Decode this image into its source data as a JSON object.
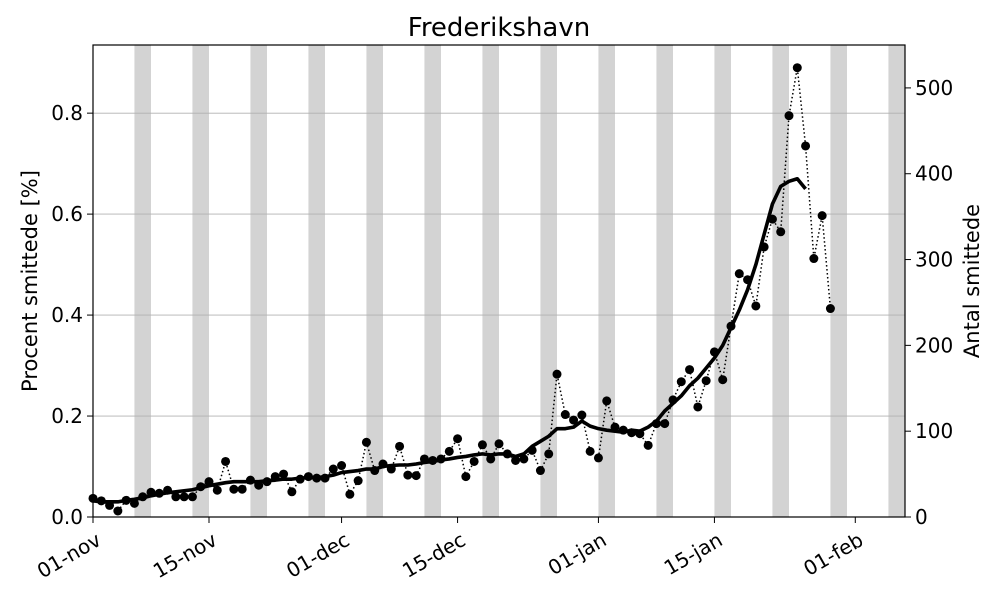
{
  "chart_data": {
    "type": "line",
    "title": "Frederikshavn",
    "ylabel_left": "Procent smittede [%]",
    "ylabel_right": "Antal smittede",
    "x_ticks": [
      "01-nov",
      "15-nov",
      "01-dec",
      "15-dec",
      "01-jan",
      "15-jan",
      "01-feb"
    ],
    "x_range": [
      "2021-11-01",
      "2022-02-07"
    ],
    "y_left_range": [
      0,
      0.935
    ],
    "y_right_range": [
      0,
      550
    ],
    "y_left_ticks": [
      "0.0",
      "0.2",
      "0.4",
      "0.6",
      "0.8"
    ],
    "y_right_ticks": [
      "0",
      "100",
      "200",
      "300",
      "400",
      "500"
    ],
    "grid": "horizontal",
    "weekend_shading": true,
    "series": [
      {
        "style": "dotted-markers",
        "axis": "left",
        "color": "#000000",
        "values": [
          0.037,
          0.032,
          0.023,
          0.012,
          0.033,
          0.027,
          0.04,
          0.049,
          0.047,
          0.053,
          0.04,
          0.04,
          0.04,
          0.06,
          0.07,
          0.053,
          0.11,
          0.055,
          0.055,
          0.073,
          0.063,
          0.07,
          0.08,
          0.085,
          0.05,
          0.075,
          0.08,
          0.077,
          0.077,
          0.095,
          0.102,
          0.045,
          0.072,
          0.148,
          0.092,
          0.105,
          0.095,
          0.14,
          0.083,
          0.082,
          0.115,
          0.112,
          0.115,
          0.13,
          0.155,
          0.08,
          0.11,
          0.143,
          0.115,
          0.145,
          0.125,
          0.112,
          0.115,
          0.132,
          0.092,
          0.125,
          0.283,
          0.203,
          0.192,
          0.202,
          0.13,
          0.117,
          0.23,
          0.178,
          0.172,
          0.167,
          0.165,
          0.142,
          0.185,
          0.185,
          0.232,
          0.268,
          0.292,
          0.218,
          0.27,
          0.327,
          0.272,
          0.378,
          0.482,
          0.47,
          0.418,
          0.535,
          0.59,
          0.565,
          0.795,
          0.89,
          0.735,
          0.512,
          0.597,
          0.413
        ]
      },
      {
        "style": "solid",
        "axis": "left",
        "color": "#000000",
        "values": [
          0.032,
          0.03,
          0.03,
          0.03,
          0.033,
          0.035,
          0.038,
          0.042,
          0.045,
          0.048,
          0.05,
          0.052,
          0.054,
          0.058,
          0.062,
          0.065,
          0.068,
          0.07,
          0.07,
          0.07,
          0.07,
          0.072,
          0.073,
          0.075,
          0.075,
          0.077,
          0.078,
          0.078,
          0.08,
          0.083,
          0.088,
          0.09,
          0.092,
          0.095,
          0.095,
          0.1,
          0.102,
          0.103,
          0.103,
          0.105,
          0.108,
          0.11,
          0.113,
          0.115,
          0.118,
          0.12,
          0.123,
          0.125,
          0.123,
          0.125,
          0.125,
          0.12,
          0.125,
          0.14,
          0.15,
          0.16,
          0.175,
          0.175,
          0.178,
          0.19,
          0.18,
          0.175,
          0.172,
          0.17,
          0.168,
          0.172,
          0.17,
          0.178,
          0.19,
          0.21,
          0.225,
          0.24,
          0.26,
          0.275,
          0.295,
          0.315,
          0.34,
          0.375,
          0.41,
          0.45,
          0.5,
          0.56,
          0.62,
          0.655,
          0.665,
          0.67,
          0.65
        ]
      }
    ]
  }
}
